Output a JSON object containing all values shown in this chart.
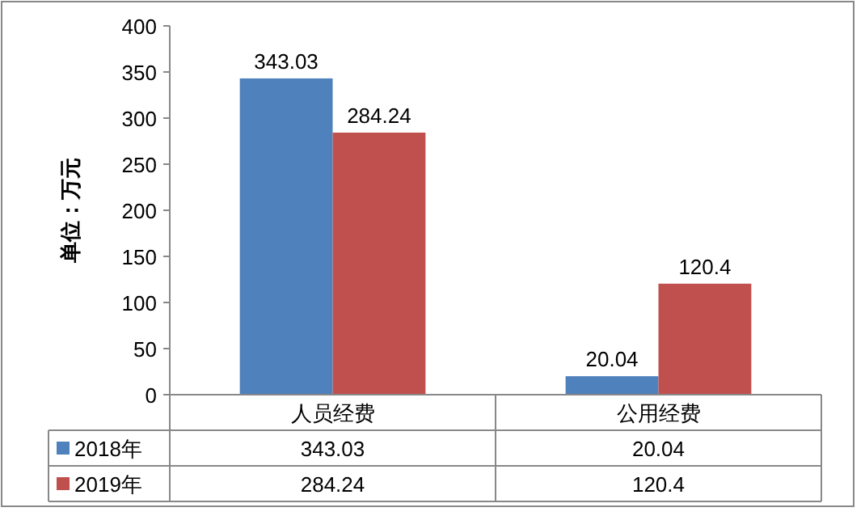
{
  "chart_data": {
    "type": "bar",
    "ylabel": "单位：万元",
    "categories": [
      "人员经费",
      "公用经费"
    ],
    "series": [
      {
        "name": "2018年",
        "color": "#4f81bd",
        "values": [
          343.03,
          20.04
        ],
        "value_labels": [
          "343.03",
          "20.04"
        ]
      },
      {
        "name": "2019年",
        "color": "#c0504d",
        "values": [
          284.24,
          120.4
        ],
        "value_labels": [
          "284.24",
          "120.4"
        ]
      }
    ],
    "ylim": [
      0,
      400
    ],
    "yticks": [
      0,
      50,
      100,
      150,
      200,
      250,
      300,
      350,
      400
    ],
    "annotations": [
      "343.03",
      "20.04",
      "284.24",
      "120.4"
    ],
    "legend": "bottom",
    "grid": false
  }
}
